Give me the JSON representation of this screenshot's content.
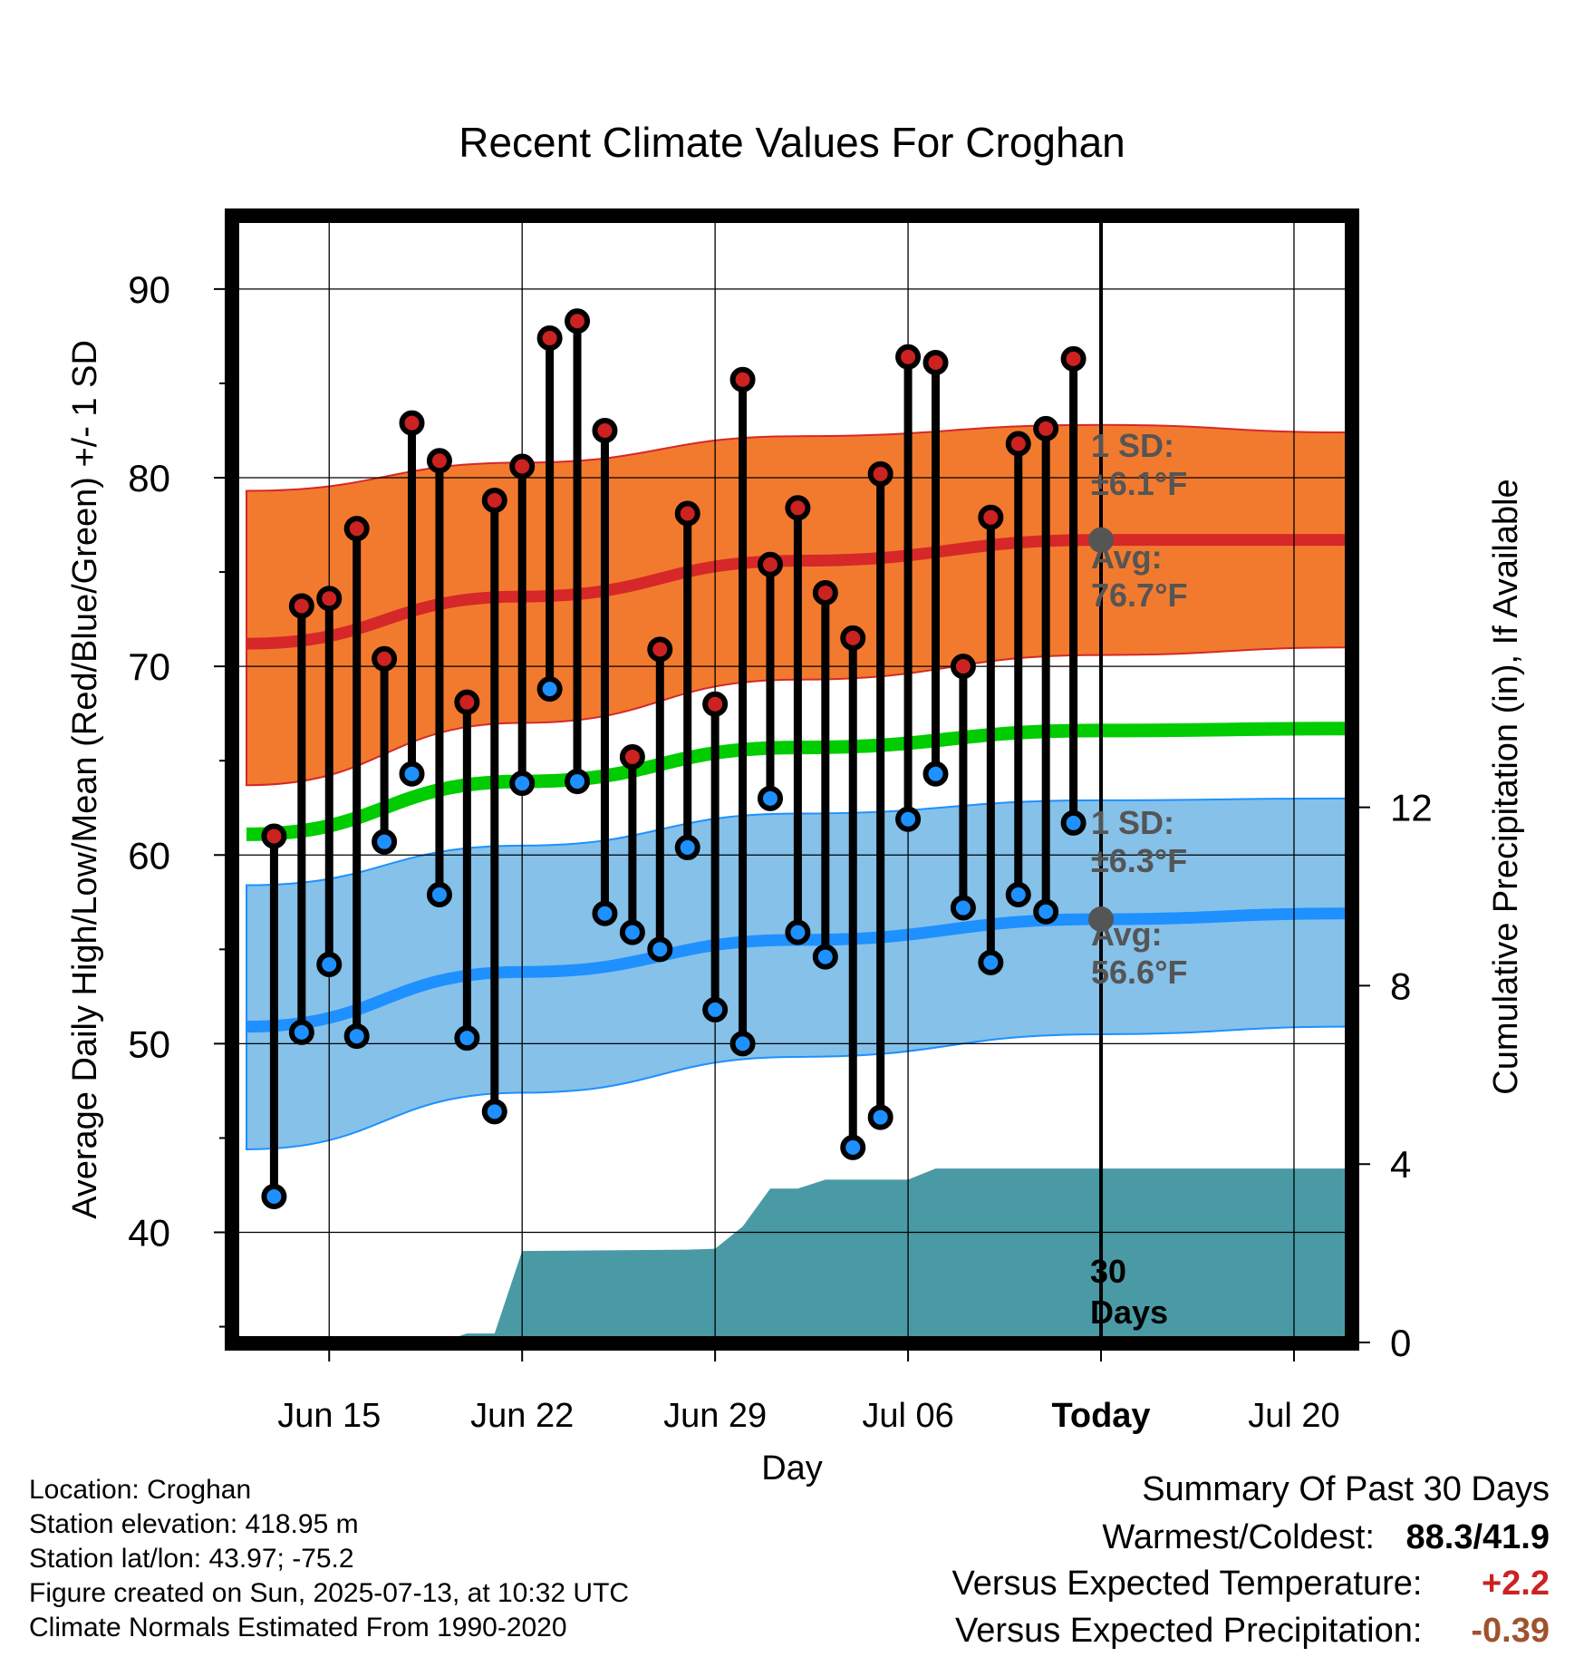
{
  "chart_data": {
    "type": "line",
    "title": "Recent Climate Values For Croghan",
    "xlabel": "Day",
    "ylabel": "Average Daily High/Low/Mean (Red/Blue/Green) +/- 1 SD",
    "y2label": "Cumulative Precipitation (in), If Available",
    "ylim": [
      34.5,
      93.5
    ],
    "y2lim": [
      0,
      16
    ],
    "yticks": [
      "40",
      "50",
      "60",
      "70",
      "80",
      "90"
    ],
    "y2ticks": [
      "0",
      "4",
      "8",
      "12"
    ],
    "x_tick_labels": [
      "Jun 15",
      "Jun 22",
      "Jun 29",
      "Jul 06",
      "Today",
      "Jul 20"
    ],
    "x_range": [
      "2025-06-12",
      "2025-07-22"
    ],
    "today": "2025-07-13",
    "grid": true,
    "days": [
      "2025-06-13",
      "2025-06-14",
      "2025-06-15",
      "2025-06-16",
      "2025-06-17",
      "2025-06-18",
      "2025-06-19",
      "2025-06-20",
      "2025-06-21",
      "2025-06-22",
      "2025-06-23",
      "2025-06-24",
      "2025-06-25",
      "2025-06-26",
      "2025-06-27",
      "2025-06-28",
      "2025-06-29",
      "2025-06-30",
      "2025-07-01",
      "2025-07-02",
      "2025-07-03",
      "2025-07-04",
      "2025-07-05",
      "2025-07-06",
      "2025-07-07",
      "2025-07-08",
      "2025-07-09",
      "2025-07-10",
      "2025-07-11",
      "2025-07-12"
    ],
    "series": [
      {
        "name": "High",
        "color": "#cc2222",
        "values": [
          61.0,
          73.2,
          73.6,
          77.3,
          70.4,
          82.9,
          80.9,
          68.1,
          78.8,
          80.6,
          87.4,
          88.3,
          82.5,
          65.2,
          70.9,
          78.1,
          68.0,
          85.2,
          75.4,
          78.4,
          73.9,
          71.5,
          80.2,
          86.4,
          86.1,
          70.0,
          77.9,
          81.8,
          82.6,
          86.3
        ]
      },
      {
        "name": "Low",
        "color": "#1e90ff",
        "values": [
          41.9,
          50.6,
          54.2,
          50.4,
          60.7,
          64.3,
          57.9,
          50.3,
          46.4,
          63.8,
          68.8,
          63.9,
          56.9,
          55.9,
          55.0,
          60.4,
          51.8,
          50.0,
          63.0,
          55.9,
          54.6,
          44.5,
          46.1,
          61.9,
          64.3,
          57.2,
          54.3,
          57.9,
          57.0,
          61.7
        ]
      }
    ],
    "normals": {
      "dates": [
        "2025-06-12",
        "2025-06-22",
        "2025-07-02",
        "2025-07-13",
        "2025-07-22"
      ],
      "high_avg": [
        71.2,
        73.7,
        75.6,
        76.7,
        76.7
      ],
      "high_upper": [
        79.3,
        80.8,
        82.2,
        82.8,
        82.4
      ],
      "high_lower": [
        63.7,
        67.0,
        69.3,
        70.6,
        71.0
      ],
      "mean": [
        61.1,
        63.9,
        65.7,
        66.6,
        66.7
      ],
      "low_avg": [
        50.9,
        53.8,
        55.5,
        56.6,
        56.9
      ],
      "low_upper": [
        58.4,
        60.5,
        62.2,
        62.9,
        63.0
      ],
      "low_lower": [
        44.4,
        47.4,
        49.3,
        50.5,
        50.9
      ]
    },
    "precipitation": {
      "color": "#4a9aa5",
      "dates": [
        "2025-06-12",
        "2025-06-19",
        "2025-06-20",
        "2025-06-21",
        "2025-06-22",
        "2025-06-28",
        "2025-06-29",
        "2025-06-30",
        "2025-07-01",
        "2025-07-02",
        "2025-07-03",
        "2025-07-06",
        "2025-07-07",
        "2025-07-22"
      ],
      "values": [
        0,
        0,
        0.2,
        0.2,
        2.05,
        2.08,
        2.1,
        2.6,
        3.45,
        3.45,
        3.65,
        3.65,
        3.9,
        3.9
      ]
    },
    "annotations": {
      "high_sd": "1 SD:",
      "high_sd_val": "±6.1°F",
      "high_avg_label": "Avg:",
      "high_avg_val": "76.7°F",
      "low_sd": "1 SD:",
      "low_sd_val": "±6.3°F",
      "low_avg_label": "Avg:",
      "low_avg_val": "56.6°F",
      "days_num": "30",
      "days_word": "Days"
    }
  },
  "info": {
    "location": "Location: Croghan",
    "elevation": "Station elevation: 418.95 m",
    "latlon": "Station lat/lon: 43.97; -75.2",
    "created": "Figure created on Sun, 2025-07-13, at 10:32 UTC",
    "normals": "Climate Normals Estimated From 1990-2020"
  },
  "summary": {
    "title": "Summary Of Past 30 Days",
    "warmest_label": "Warmest/Coldest:",
    "warmest_value": "88.3/41.9",
    "temp_label": "Versus Expected Temperature:",
    "temp_value": "+2.2",
    "temp_color": "#cc2222",
    "precip_label": "Versus Expected Precipitation:",
    "precip_value": "-0.39",
    "precip_color": "#a0522d"
  }
}
